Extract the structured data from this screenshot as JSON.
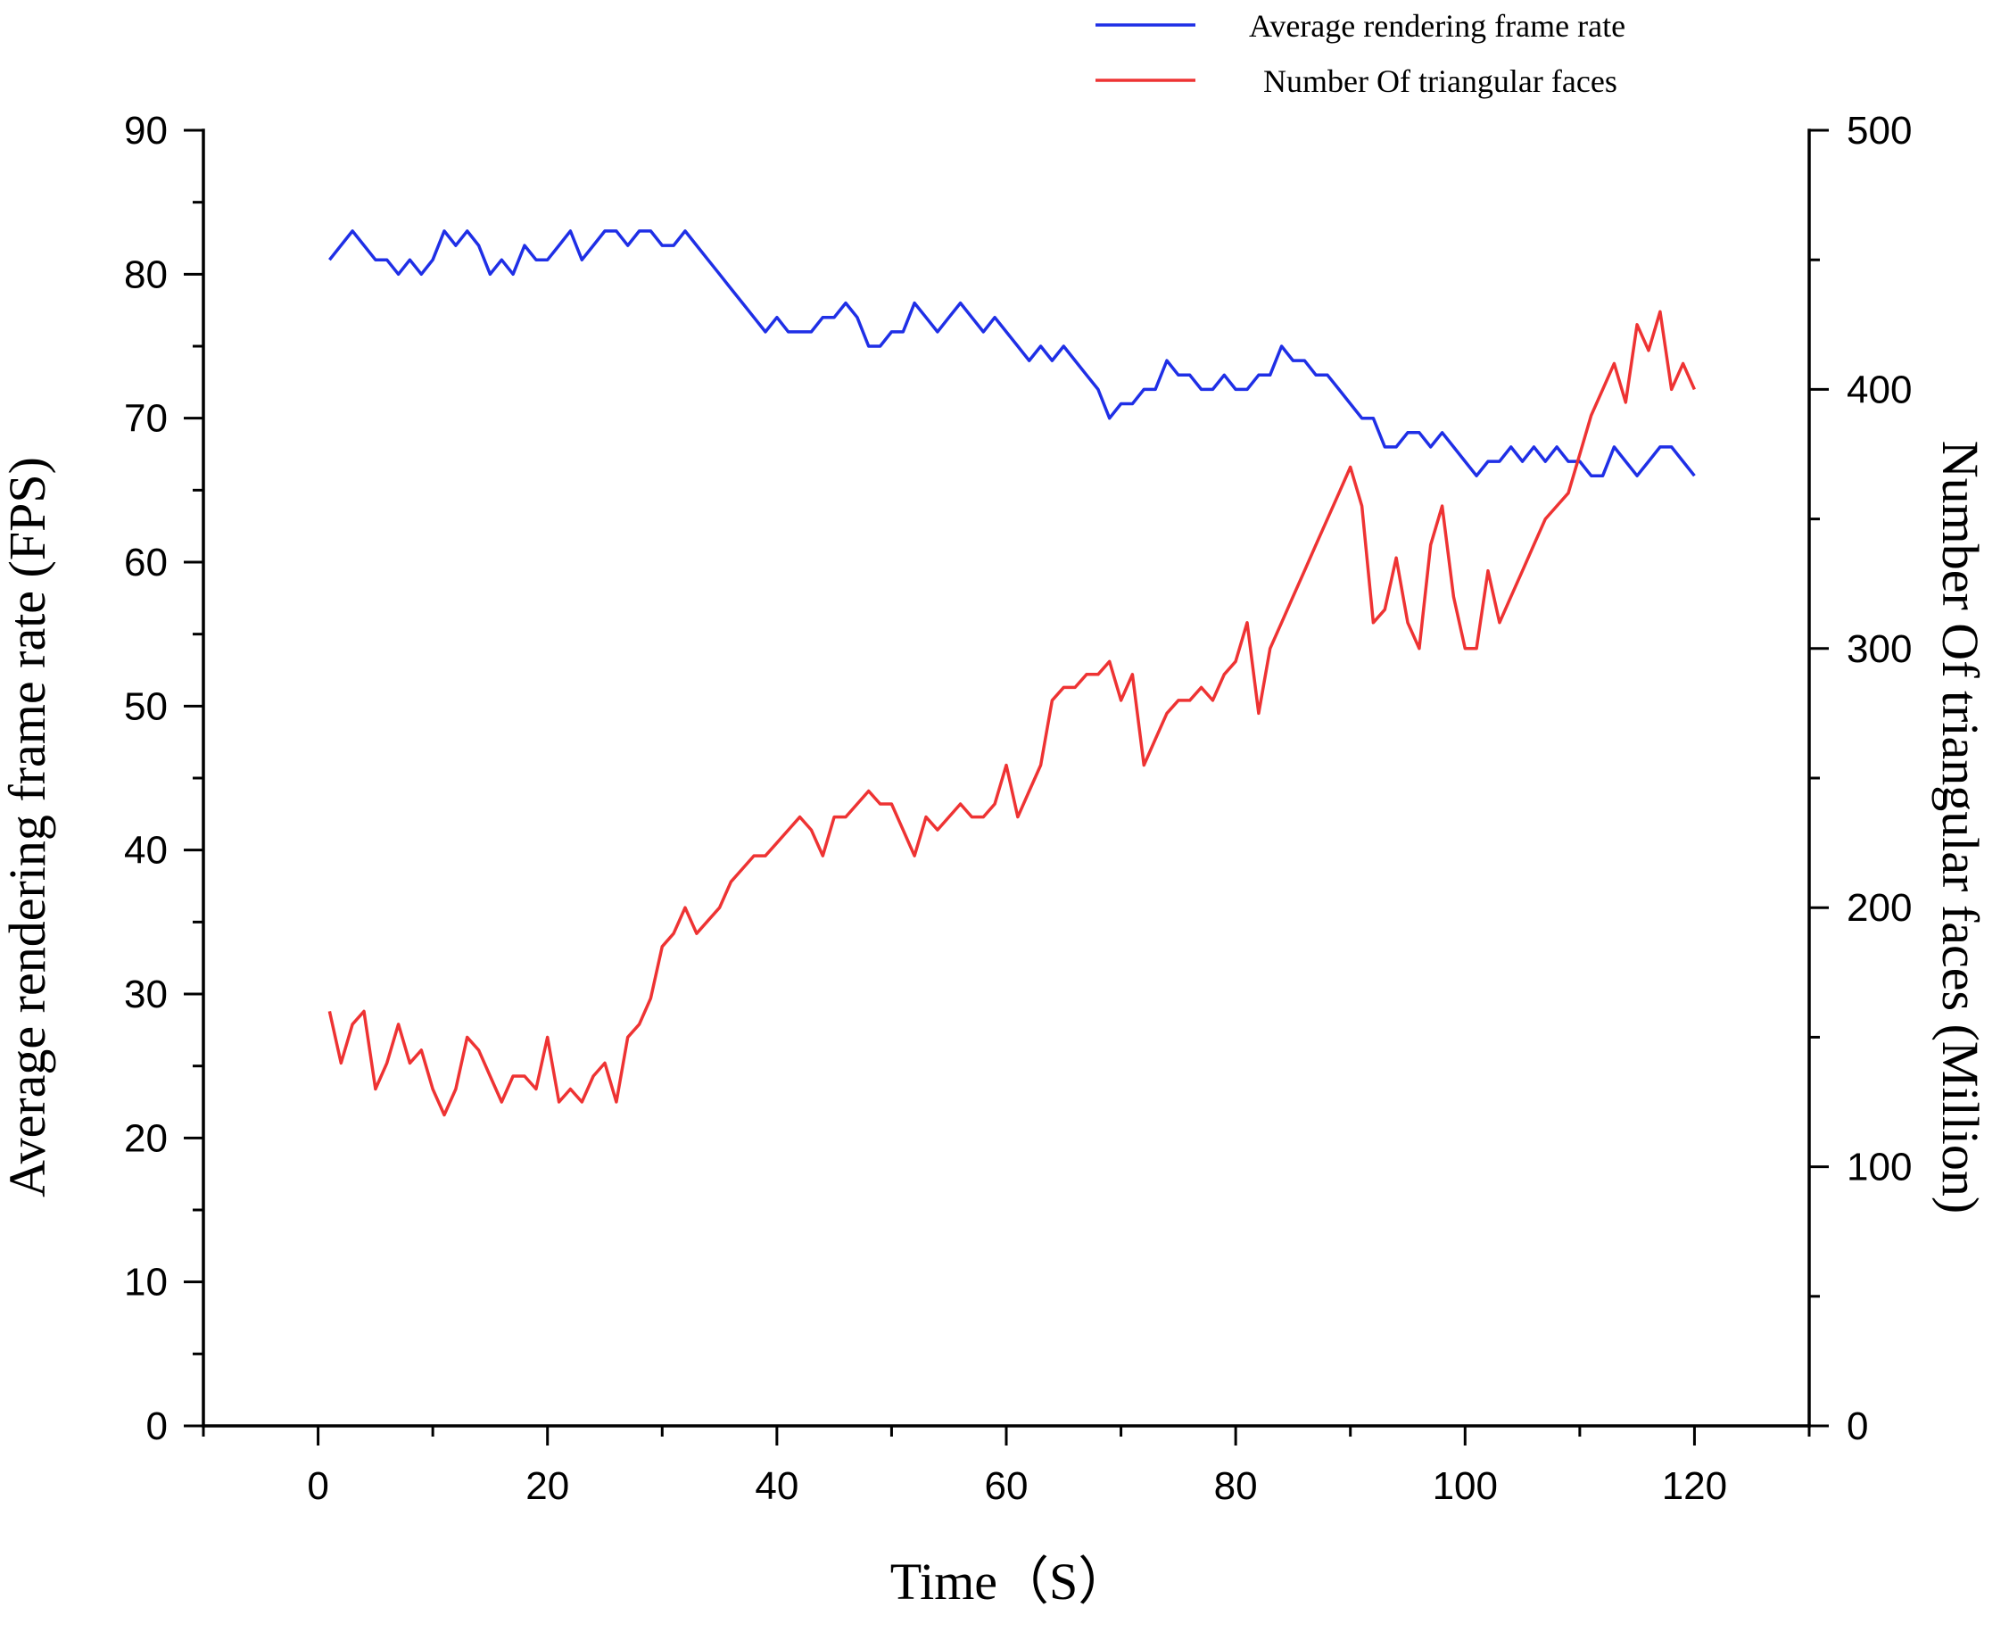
{
  "chart_data": {
    "type": "line",
    "xlabel": "Time（S）",
    "ylabel": "Average rendering frame rate (FPS)",
    "y2label": "Number Of triangular faces (Million)",
    "xlim": [
      -10,
      130
    ],
    "ylim": [
      0,
      90
    ],
    "y2lim": [
      0,
      500
    ],
    "xticks": [
      "0",
      "20",
      "40",
      "60",
      "80",
      "100",
      "120"
    ],
    "yticks": [
      "0",
      "10",
      "20",
      "30",
      "40",
      "50",
      "60",
      "70",
      "80",
      "90"
    ],
    "y2ticks": [
      "0",
      "100",
      "200",
      "300",
      "400",
      "500"
    ],
    "grid": false,
    "legend_position": "top-right",
    "series": [
      {
        "name": "Average rendering frame rate",
        "axis": "left",
        "color": "#1f2fe6",
        "x": [
          1,
          3,
          5,
          6,
          7,
          8,
          9,
          10,
          11,
          12,
          13,
          14,
          15,
          16,
          17,
          18,
          19,
          20,
          21,
          22,
          23,
          24,
          25,
          26,
          27,
          28,
          29,
          30,
          31,
          32,
          33,
          34,
          35,
          36,
          37,
          38,
          39,
          40,
          41,
          42,
          43,
          44,
          45,
          46,
          47,
          48,
          49,
          50,
          51,
          52,
          53,
          54,
          55,
          56,
          57,
          58,
          59,
          60,
          61,
          62,
          63,
          64,
          65,
          66,
          67,
          68,
          69,
          70,
          71,
          72,
          73,
          74,
          75,
          76,
          77,
          78,
          79,
          80,
          81,
          82,
          83,
          84,
          85,
          86,
          87,
          88,
          89,
          90,
          91,
          92,
          93,
          94,
          95,
          96,
          97,
          98,
          99,
          100,
          101,
          102,
          103,
          104,
          105,
          106,
          107,
          108,
          109,
          110,
          111,
          112,
          113,
          114,
          115,
          116,
          117,
          118,
          119,
          120
        ],
        "values": [
          81,
          83,
          81,
          81,
          80,
          81,
          80,
          81,
          83,
          82,
          83,
          82,
          80,
          81,
          80,
          82,
          81,
          81,
          82,
          83,
          81,
          82,
          83,
          83,
          82,
          83,
          83,
          82,
          82,
          83,
          82,
          81,
          80,
          79,
          78,
          77,
          76,
          77,
          76,
          76,
          76,
          77,
          77,
          78,
          77,
          75,
          75,
          76,
          76,
          78,
          77,
          76,
          77,
          78,
          77,
          76,
          77,
          76,
          75,
          74,
          75,
          74,
          75,
          74,
          73,
          72,
          70,
          71,
          71,
          72,
          72,
          74,
          73,
          73,
          72,
          72,
          73,
          72,
          72,
          73,
          73,
          75,
          74,
          74,
          73,
          73,
          72,
          71,
          70,
          70,
          68,
          68,
          69,
          69,
          68,
          69,
          68,
          67,
          66,
          67,
          67,
          68,
          67,
          68,
          67,
          68,
          67,
          67,
          66,
          66,
          68,
          67,
          66,
          67,
          68,
          68,
          67,
          66
        ]
      },
      {
        "name": "Number Of triangular faces",
        "axis": "right",
        "color": "#ee3333",
        "x": [
          1,
          2,
          3,
          4,
          5,
          6,
          7,
          8,
          9,
          10,
          11,
          12,
          13,
          14,
          15,
          16,
          17,
          18,
          19,
          20,
          21,
          22,
          23,
          24,
          25,
          26,
          27,
          28,
          29,
          30,
          31,
          32,
          33,
          34,
          35,
          36,
          37,
          38,
          39,
          40,
          41,
          42,
          43,
          44,
          45,
          46,
          47,
          48,
          49,
          50,
          51,
          52,
          53,
          54,
          55,
          56,
          57,
          58,
          59,
          60,
          61,
          62,
          63,
          64,
          65,
          66,
          67,
          68,
          69,
          70,
          71,
          72,
          73,
          74,
          75,
          76,
          77,
          78,
          79,
          80,
          81,
          82,
          83,
          84,
          85,
          86,
          87,
          88,
          89,
          90,
          91,
          92,
          93,
          94,
          95,
          96,
          97,
          98,
          99,
          100,
          101,
          102,
          103,
          104,
          105,
          106,
          107,
          108,
          109,
          110,
          111,
          112,
          113,
          114,
          115,
          116,
          117,
          118,
          119,
          120
        ],
        "values": [
          160,
          140,
          155,
          160,
          130,
          140,
          155,
          140,
          145,
          130,
          120,
          130,
          150,
          145,
          135,
          125,
          135,
          135,
          130,
          150,
          125,
          130,
          125,
          135,
          140,
          125,
          150,
          155,
          165,
          185,
          190,
          200,
          190,
          195,
          200,
          210,
          215,
          220,
          220,
          225,
          230,
          235,
          230,
          220,
          235,
          235,
          240,
          245,
          240,
          240,
          230,
          220,
          235,
          230,
          235,
          240,
          235,
          235,
          240,
          255,
          235,
          245,
          255,
          280,
          285,
          285,
          290,
          290,
          295,
          280,
          290,
          255,
          265,
          275,
          280,
          280,
          285,
          280,
          290,
          295,
          310,
          275,
          300,
          310,
          320,
          330,
          340,
          350,
          360,
          370,
          355,
          310,
          315,
          335,
          310,
          300,
          340,
          355,
          320,
          300,
          300,
          330,
          310,
          320,
          330,
          340,
          350,
          355,
          360,
          375,
          390,
          400,
          410,
          395,
          425,
          415,
          430,
          400,
          410,
          400
        ]
      }
    ]
  }
}
